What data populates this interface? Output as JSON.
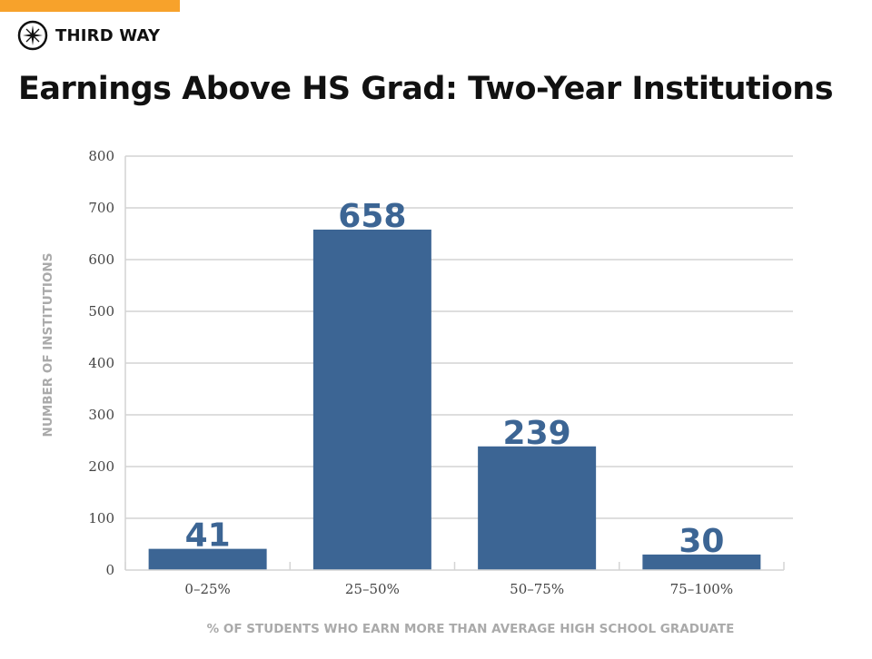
{
  "brand": {
    "name": "THIRD WAY",
    "accent_color": "#f7a22b",
    "logo_icon": "compass-star-icon"
  },
  "chart_data": {
    "type": "bar",
    "title": "Earnings Above HS Grad: Two-Year Institutions",
    "xlabel": "% OF STUDENTS WHO EARN MORE THAN AVERAGE HIGH SCHOOL GRADUATE",
    "ylabel": "NUMBER OF INSTITUTIONS",
    "categories": [
      "0–25%",
      "25–50%",
      "50–75%",
      "75–100%"
    ],
    "values": [
      41,
      658,
      239,
      30
    ],
    "data_labels": [
      "41",
      "658",
      "239",
      "30"
    ],
    "ylim": [
      0,
      800
    ],
    "yticks": [
      0,
      100,
      200,
      300,
      400,
      500,
      600,
      700,
      800
    ],
    "grid": true,
    "legend": "none",
    "bar_color": "#3c6594",
    "grid_color": "#d4d4d4"
  }
}
